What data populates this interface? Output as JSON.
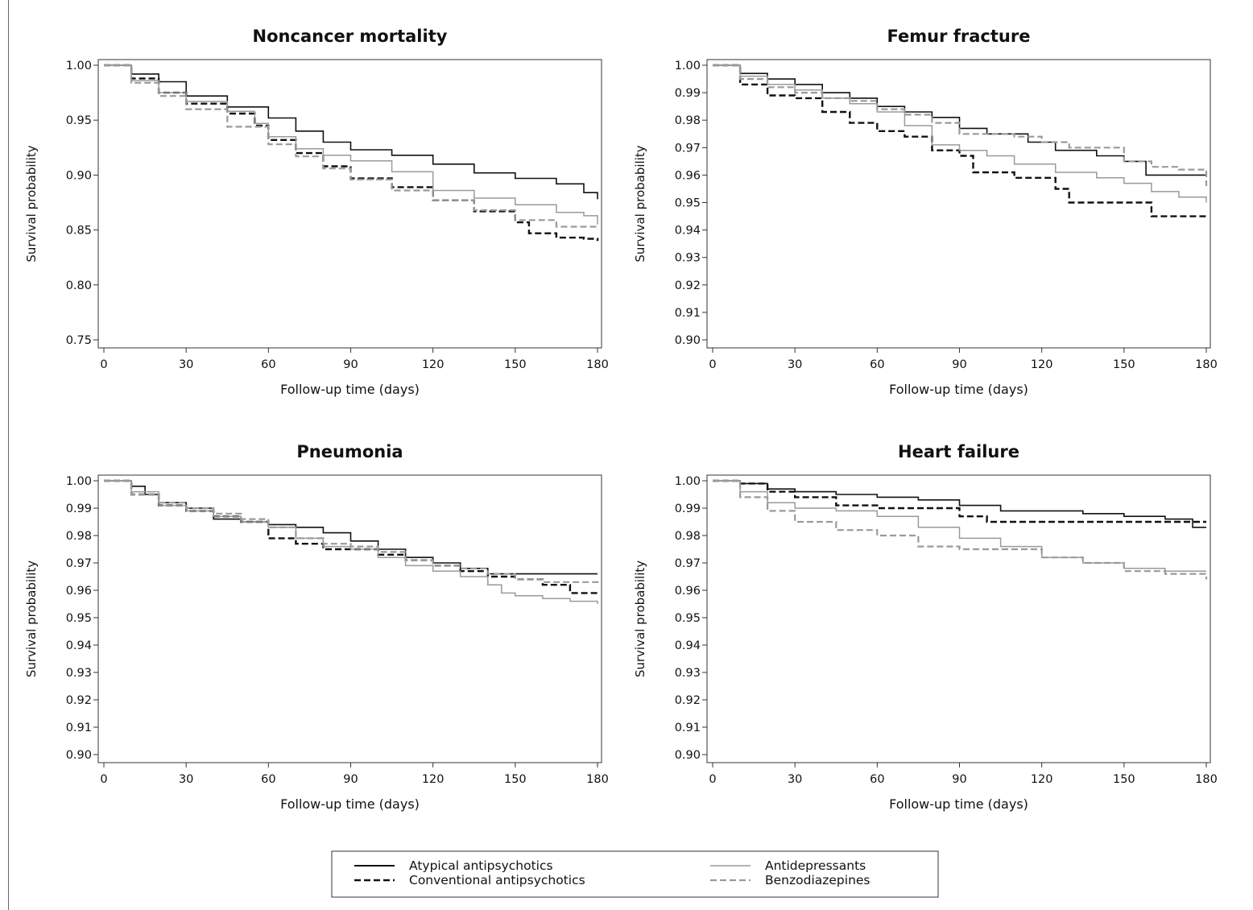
{
  "legend": [
    {
      "name": "Atypical antipsychotics",
      "color": "#111111",
      "dash": "solid"
    },
    {
      "name": "Conventional antipsychotics",
      "color": "#111111",
      "dash": "dashed"
    },
    {
      "name": "Antidepressants",
      "color": "#9a9a9a",
      "dash": "solid"
    },
    {
      "name": "Benzodiazepines",
      "color": "#9a9a9a",
      "dash": "dashed"
    }
  ],
  "chart_data": [
    {
      "type": "line",
      "title": "Noncancer mortality",
      "xlabel": "Follow-up time (days)",
      "ylabel": "Survival probability",
      "xlim": [
        0,
        180
      ],
      "ylim": [
        0.75,
        1.0
      ],
      "xticks": [
        0,
        30,
        60,
        90,
        120,
        150,
        180
      ],
      "yticks": [
        "1.00",
        "0.95",
        "0.90",
        "0.85",
        "0.80",
        "0.75"
      ],
      "ytick_values": [
        1.0,
        0.95,
        0.9,
        0.85,
        0.8,
        0.75
      ],
      "series": [
        {
          "name": "Atypical antipsychotics",
          "x": [
            0,
            10,
            20,
            30,
            45,
            60,
            70,
            80,
            90,
            105,
            120,
            135,
            150,
            165,
            175,
            180
          ],
          "y": [
            1.0,
            0.992,
            0.985,
            0.972,
            0.962,
            0.952,
            0.94,
            0.93,
            0.923,
            0.918,
            0.91,
            0.902,
            0.897,
            0.892,
            0.884,
            0.878
          ]
        },
        {
          "name": "Conventional antipsychotics",
          "x": [
            0,
            10,
            20,
            30,
            45,
            55,
            60,
            70,
            80,
            90,
            105,
            120,
            135,
            150,
            155,
            165,
            175,
            180
          ],
          "y": [
            1.0,
            0.988,
            0.975,
            0.965,
            0.956,
            0.945,
            0.932,
            0.92,
            0.908,
            0.897,
            0.889,
            0.877,
            0.867,
            0.857,
            0.847,
            0.843,
            0.842,
            0.84
          ]
        },
        {
          "name": "Antidepressants",
          "x": [
            0,
            10,
            20,
            30,
            45,
            55,
            60,
            70,
            80,
            90,
            105,
            120,
            135,
            150,
            165,
            175,
            180
          ],
          "y": [
            1.0,
            0.986,
            0.975,
            0.967,
            0.958,
            0.947,
            0.935,
            0.924,
            0.918,
            0.913,
            0.903,
            0.886,
            0.879,
            0.873,
            0.866,
            0.863,
            0.855
          ]
        },
        {
          "name": "Benzodiazepines",
          "x": [
            0,
            10,
            20,
            30,
            45,
            60,
            70,
            80,
            90,
            105,
            120,
            135,
            150,
            165,
            180
          ],
          "y": [
            1.0,
            0.984,
            0.972,
            0.96,
            0.944,
            0.928,
            0.917,
            0.906,
            0.896,
            0.886,
            0.877,
            0.868,
            0.859,
            0.853,
            0.851
          ]
        }
      ]
    },
    {
      "type": "line",
      "title": "Femur fracture",
      "xlabel": "Follow-up time (days)",
      "ylabel": "Survival probability",
      "xlim": [
        0,
        180
      ],
      "ylim": [
        0.9,
        1.0
      ],
      "xticks": [
        0,
        30,
        60,
        90,
        120,
        150,
        180
      ],
      "yticks": [
        "1.00",
        "0.99",
        "0.98",
        "0.97",
        "0.96",
        "0.95",
        "0.94",
        "0.93",
        "0.92",
        "0.91",
        "0.90"
      ],
      "ytick_values": [
        1.0,
        0.99,
        0.98,
        0.97,
        0.96,
        0.95,
        0.94,
        0.93,
        0.92,
        0.91,
        0.9
      ],
      "series": [
        {
          "name": "Atypical antipsychotics",
          "x": [
            0,
            10,
            20,
            30,
            40,
            50,
            60,
            70,
            80,
            90,
            100,
            115,
            125,
            140,
            150,
            158,
            180
          ],
          "y": [
            1.0,
            0.997,
            0.995,
            0.993,
            0.99,
            0.988,
            0.985,
            0.983,
            0.981,
            0.977,
            0.975,
            0.972,
            0.969,
            0.967,
            0.965,
            0.96,
            0.96
          ]
        },
        {
          "name": "Conventional antipsychotics",
          "x": [
            0,
            10,
            20,
            30,
            40,
            50,
            60,
            70,
            80,
            90,
            95,
            110,
            125,
            130,
            140,
            150,
            160,
            180
          ],
          "y": [
            1.0,
            0.993,
            0.989,
            0.988,
            0.983,
            0.979,
            0.976,
            0.974,
            0.969,
            0.967,
            0.961,
            0.959,
            0.955,
            0.95,
            0.95,
            0.95,
            0.945,
            0.945
          ]
        },
        {
          "name": "Antidepressants",
          "x": [
            0,
            10,
            20,
            30,
            40,
            50,
            60,
            70,
            80,
            90,
            100,
            110,
            125,
            140,
            150,
            160,
            170,
            180
          ],
          "y": [
            1.0,
            0.996,
            0.993,
            0.991,
            0.988,
            0.986,
            0.983,
            0.978,
            0.971,
            0.969,
            0.967,
            0.964,
            0.961,
            0.959,
            0.957,
            0.954,
            0.952,
            0.95
          ]
        },
        {
          "name": "Benzodiazepines",
          "x": [
            0,
            10,
            20,
            30,
            40,
            50,
            60,
            70,
            80,
            90,
            100,
            110,
            120,
            130,
            140,
            150,
            160,
            170,
            180
          ],
          "y": [
            1.0,
            0.995,
            0.992,
            0.99,
            0.988,
            0.987,
            0.984,
            0.982,
            0.979,
            0.975,
            0.975,
            0.974,
            0.972,
            0.97,
            0.97,
            0.965,
            0.963,
            0.962,
            0.956
          ]
        }
      ]
    },
    {
      "type": "line",
      "title": "Pneumonia",
      "xlabel": "Follow-up time (days)",
      "ylabel": "Survival probability",
      "xlim": [
        0,
        180
      ],
      "ylim": [
        0.9,
        1.0
      ],
      "xticks": [
        0,
        30,
        60,
        90,
        120,
        150,
        180
      ],
      "yticks": [
        "1.00",
        "0.99",
        "0.98",
        "0.97",
        "0.96",
        "0.95",
        "0.94",
        "0.93",
        "0.92",
        "0.91",
        "0.90"
      ],
      "ytick_values": [
        1.0,
        0.99,
        0.98,
        0.97,
        0.96,
        0.95,
        0.94,
        0.93,
        0.92,
        0.91,
        0.9
      ],
      "series": [
        {
          "name": "Atypical antipsychotics",
          "x": [
            0,
            10,
            15,
            20,
            30,
            40,
            50,
            60,
            70,
            80,
            90,
            100,
            110,
            120,
            130,
            140,
            150,
            180
          ],
          "y": [
            1.0,
            0.998,
            0.995,
            0.992,
            0.99,
            0.986,
            0.985,
            0.984,
            0.983,
            0.981,
            0.978,
            0.975,
            0.972,
            0.97,
            0.968,
            0.966,
            0.966,
            0.966
          ]
        },
        {
          "name": "Conventional antipsychotics",
          "x": [
            0,
            10,
            20,
            30,
            40,
            50,
            60,
            70,
            80,
            90,
            100,
            110,
            120,
            130,
            140,
            150,
            160,
            170,
            180
          ],
          "y": [
            1.0,
            0.995,
            0.991,
            0.989,
            0.987,
            0.985,
            0.979,
            0.977,
            0.975,
            0.975,
            0.973,
            0.971,
            0.969,
            0.967,
            0.965,
            0.964,
            0.962,
            0.959,
            0.959
          ]
        },
        {
          "name": "Antidepressants",
          "x": [
            0,
            10,
            20,
            30,
            40,
            50,
            60,
            70,
            80,
            90,
            100,
            110,
            120,
            130,
            140,
            145,
            150,
            160,
            170,
            180
          ],
          "y": [
            1.0,
            0.996,
            0.991,
            0.989,
            0.987,
            0.985,
            0.983,
            0.979,
            0.976,
            0.975,
            0.972,
            0.969,
            0.967,
            0.965,
            0.962,
            0.959,
            0.958,
            0.957,
            0.956,
            0.955
          ]
        },
        {
          "name": "Benzodiazepines",
          "x": [
            0,
            10,
            20,
            30,
            40,
            50,
            60,
            70,
            80,
            90,
            100,
            110,
            120,
            130,
            140,
            150,
            160,
            180
          ],
          "y": [
            1.0,
            0.995,
            0.992,
            0.99,
            0.988,
            0.986,
            0.983,
            0.979,
            0.977,
            0.976,
            0.974,
            0.971,
            0.969,
            0.968,
            0.966,
            0.964,
            0.963,
            0.962
          ]
        }
      ]
    },
    {
      "type": "line",
      "title": "Heart failure",
      "xlabel": "Follow-up time (days)",
      "ylabel": "Survival probability",
      "xlim": [
        0,
        180
      ],
      "ylim": [
        0.9,
        1.0
      ],
      "xticks": [
        0,
        30,
        60,
        90,
        120,
        150,
        180
      ],
      "yticks": [
        "1.00",
        "0.99",
        "0.98",
        "0.97",
        "0.96",
        "0.95",
        "0.94",
        "0.93",
        "0.92",
        "0.91",
        "0.90"
      ],
      "ytick_values": [
        1.0,
        0.99,
        0.98,
        0.97,
        0.96,
        0.95,
        0.94,
        0.93,
        0.92,
        0.91,
        0.9
      ],
      "series": [
        {
          "name": "Atypical antipsychotics",
          "x": [
            0,
            10,
            20,
            30,
            45,
            60,
            75,
            90,
            105,
            120,
            135,
            150,
            165,
            175,
            180
          ],
          "y": [
            1.0,
            0.999,
            0.997,
            0.996,
            0.995,
            0.994,
            0.993,
            0.991,
            0.989,
            0.989,
            0.988,
            0.987,
            0.986,
            0.983,
            0.983
          ]
        },
        {
          "name": "Conventional antipsychotics",
          "x": [
            0,
            10,
            20,
            30,
            45,
            60,
            75,
            90,
            100,
            120,
            150,
            170,
            180
          ],
          "y": [
            1.0,
            0.999,
            0.996,
            0.994,
            0.991,
            0.99,
            0.99,
            0.987,
            0.985,
            0.985,
            0.985,
            0.985,
            0.985
          ]
        },
        {
          "name": "Antidepressants",
          "x": [
            0,
            10,
            20,
            30,
            45,
            60,
            75,
            90,
            105,
            120,
            135,
            150,
            165,
            180
          ],
          "y": [
            1.0,
            0.996,
            0.992,
            0.99,
            0.989,
            0.987,
            0.983,
            0.979,
            0.976,
            0.972,
            0.97,
            0.968,
            0.967,
            0.967
          ]
        },
        {
          "name": "Benzodiazepines",
          "x": [
            0,
            10,
            20,
            30,
            45,
            60,
            75,
            90,
            105,
            120,
            135,
            150,
            165,
            180
          ],
          "y": [
            1.0,
            0.994,
            0.989,
            0.985,
            0.982,
            0.98,
            0.976,
            0.975,
            0.975,
            0.972,
            0.97,
            0.967,
            0.966,
            0.964
          ]
        }
      ]
    }
  ]
}
